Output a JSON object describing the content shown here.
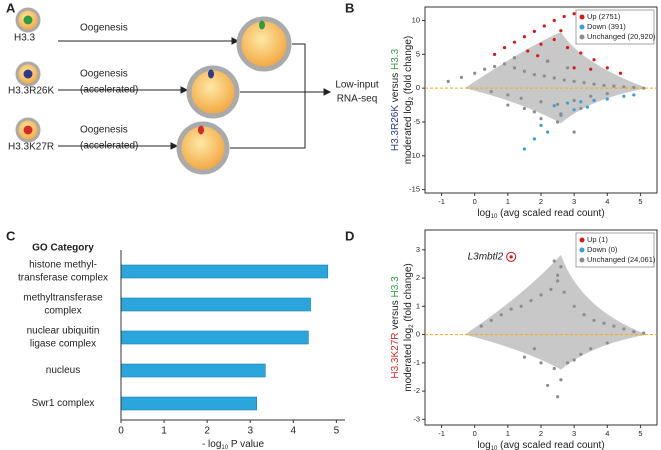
{
  "panel_labels": [
    "A",
    "B",
    "C",
    "D"
  ],
  "diagram": {
    "rows": [
      {
        "label": "H3.3",
        "color": "#2e9e3e",
        "process": [
          "Oogenesis"
        ]
      },
      {
        "label": "H3.3R26K",
        "color": "#2b3a8c",
        "process": [
          "Oogenesis",
          "(accelerated)"
        ]
      },
      {
        "label": "H3.3K27R",
        "color": "#d52a2a",
        "process": [
          "Oogenesis",
          "(accelerated)"
        ]
      }
    ],
    "output": [
      "Low-input",
      "RNA-seq"
    ],
    "output_color": "#2aa8d8"
  },
  "chart_data": [
    {
      "type": "scatter",
      "x_label": [
        {
          "text": "log"
        },
        {
          "text": "10",
          "sub": true
        },
        {
          "text": " (avg scaled read count)"
        }
      ],
      "y_label": [
        [
          {
            "text": "H3.3R26K",
            "color": "#2b3a8c"
          },
          {
            "text": " versus "
          },
          {
            "text": "H3.3",
            "color": "#2e9e3e"
          }
        ],
        [
          {
            "text": "moderated log"
          },
          {
            "text": "2",
            "sub": true
          },
          {
            "text": " (fold change)"
          }
        ]
      ],
      "xlim": [
        -1.5,
        5.5
      ],
      "xticks": [
        -1,
        0,
        1,
        2,
        3,
        4,
        5
      ],
      "ylim": [
        -15.5,
        12
      ],
      "yticks": [
        -15,
        -10,
        -5,
        0,
        5,
        10
      ],
      "hline": {
        "value": 0,
        "color": "#f5a623"
      },
      "legend": "upper right",
      "series": [
        {
          "name": "Up (2751)",
          "color": "#d7191c",
          "x": [
            0.6,
            0.9,
            1.2,
            1.5,
            1.8,
            2.1,
            2.4,
            2.7,
            3.0,
            1.6,
            2.0,
            2.4,
            2.8,
            3.2,
            3.6,
            4.0,
            2.2,
            3.0,
            3.5,
            4.4,
            2.6,
            1.9
          ],
          "y": [
            5.0,
            6.0,
            6.8,
            7.6,
            8.4,
            9.2,
            10.0,
            10.6,
            11.0,
            5.5,
            6.5,
            7.2,
            6.0,
            5.2,
            4.2,
            3.0,
            4.0,
            3.0,
            2.8,
            2.2,
            8.5,
            4.8
          ]
        },
        {
          "name": "Down (391)",
          "color": "#3a9fd8",
          "x": [
            2.4,
            2.8,
            3.2,
            3.6,
            4.0,
            4.5,
            2.6,
            2.0,
            1.8,
            3.0,
            1.5,
            2.2,
            3.4,
            4.8
          ],
          "y": [
            -2.6,
            -2.2,
            -2.0,
            -1.8,
            -1.6,
            -1.2,
            -4.0,
            -5.5,
            -7.5,
            -3.2,
            -9.0,
            -6.5,
            -2.8,
            -1.0
          ]
        },
        {
          "name": "Unchanged (20,920)",
          "color": "#8c8c8c",
          "x": [
            -0.8,
            -0.4,
            0.0,
            0.3,
            0.6,
            0.9,
            1.2,
            1.5,
            1.8,
            2.1,
            2.4,
            2.7,
            3.0,
            3.3,
            3.6,
            3.9,
            4.2,
            4.5,
            4.8,
            5.1,
            1.0,
            1.4,
            2.0,
            2.5,
            3.0,
            3.5,
            4.0,
            1.8,
            2.6,
            3.2,
            0.5,
            1.0,
            1.5,
            2.0,
            2.5,
            3.0,
            1.2,
            2.2,
            2.8
          ],
          "y": [
            1.0,
            1.6,
            2.2,
            2.8,
            3.2,
            3.6,
            3.0,
            2.5,
            2.0,
            1.8,
            1.5,
            1.2,
            1.0,
            0.8,
            0.6,
            0.4,
            0.3,
            0.2,
            0.1,
            0.0,
            -1.0,
            -1.5,
            -2.0,
            -2.4,
            -1.8,
            -1.2,
            -0.8,
            -3.5,
            -3.8,
            -3.0,
            -0.5,
            -2.5,
            -3.0,
            -4.5,
            -5.0,
            -6.5,
            4.5,
            4.0,
            3.0
          ]
        }
      ]
    },
    {
      "type": "barh",
      "title": "GO Category",
      "categories": [
        [
          "histone methyl-",
          "transferase complex"
        ],
        [
          "methyltransferase",
          "complex"
        ],
        [
          "nuclear ubiquitin",
          "ligase complex"
        ],
        [
          "nucleus"
        ],
        [
          "Swr1 complex"
        ]
      ],
      "values": [
        4.8,
        4.4,
        4.35,
        3.35,
        3.15
      ],
      "color": "#2aa6dc",
      "x_label": [
        {
          "text": "- log"
        },
        {
          "text": "10",
          "sub": true
        },
        {
          "text": " P value"
        }
      ],
      "xlim": [
        0,
        5.2
      ],
      "xticks": [
        0,
        1,
        2,
        3,
        4,
        5
      ]
    },
    {
      "type": "scatter",
      "x_label": [
        {
          "text": "log"
        },
        {
          "text": "10",
          "sub": true
        },
        {
          "text": " (avg scaled read count)"
        }
      ],
      "y_label": [
        [
          {
            "text": "H3.3K27R",
            "color": "#d52a2a"
          },
          {
            "text": " versus "
          },
          {
            "text": "H3.3",
            "color": "#2e9e3e"
          }
        ],
        [
          {
            "text": "moderated log"
          },
          {
            "text": "2",
            "sub": true
          },
          {
            "text": " (fold change)"
          }
        ]
      ],
      "xlim": [
        -1.5,
        5.5
      ],
      "xticks": [
        -1,
        0,
        1,
        2,
        3,
        4,
        5
      ],
      "ylim": [
        -3.2,
        3.7
      ],
      "yticks": [
        -3,
        -2,
        -1,
        0,
        1,
        2,
        3
      ],
      "hline": {
        "value": 0,
        "color": "#f5a623"
      },
      "legend": "upper right",
      "annotation": "L3mbtl2",
      "series": [
        {
          "name": "Up (1)",
          "color": "#d7191c",
          "x": [
            1.1
          ],
          "y": [
            2.75
          ]
        },
        {
          "name": "Down (0)",
          "color": "#3a9fd8",
          "x": [],
          "y": []
        },
        {
          "name": "Unchanged (24,061)",
          "color": "#8c8c8c",
          "x": [
            0.2,
            0.5,
            0.8,
            1.1,
            1.4,
            1.7,
            2.0,
            2.3,
            2.5,
            2.7,
            3.0,
            3.3,
            3.6,
            3.9,
            4.2,
            4.5,
            4.8,
            5.1,
            1.5,
            2.0,
            2.4,
            2.6,
            2.8,
            3.2,
            1.8,
            2.2,
            2.5,
            3.0,
            3.5,
            4.0,
            2.6,
            2.5,
            2.4
          ],
          "y": [
            0.3,
            0.5,
            0.7,
            0.9,
            1.0,
            1.2,
            1.4,
            1.6,
            1.9,
            1.5,
            1.0,
            0.7,
            0.5,
            0.4,
            0.3,
            0.2,
            0.1,
            0.05,
            -0.8,
            -1.0,
            -1.2,
            -1.6,
            -1.0,
            -0.7,
            -0.5,
            -1.8,
            -2.2,
            -0.9,
            -0.5,
            -0.3,
            2.4,
            2.1,
            2.6
          ]
        }
      ]
    }
  ]
}
